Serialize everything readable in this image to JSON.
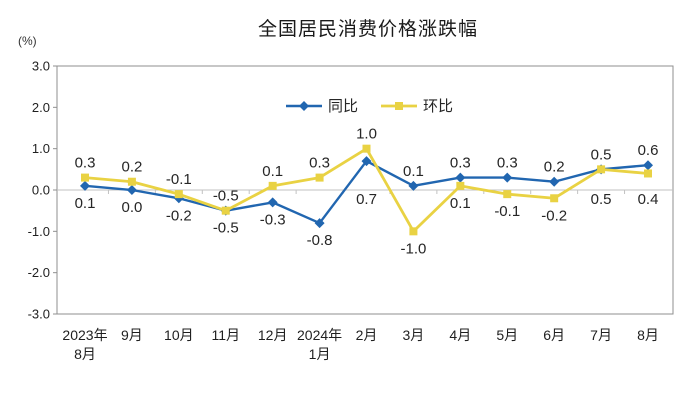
{
  "chart_data": {
    "type": "line",
    "title": "全国居民消费价格涨跌幅",
    "ylabel": "(%)",
    "xlabel": "",
    "categories": [
      "2023年8月",
      "9月",
      "10月",
      "11月",
      "12月",
      "2024年1月",
      "2月",
      "3月",
      "4月",
      "5月",
      "6月",
      "7月",
      "8月"
    ],
    "series": [
      {
        "name": "同比",
        "color": "#2166B0",
        "marker": "diamond",
        "values": [
          0.1,
          0.0,
          -0.2,
          -0.5,
          -0.3,
          -0.8,
          0.7,
          0.1,
          0.3,
          0.3,
          0.2,
          0.5,
          0.6
        ]
      },
      {
        "name": "环比",
        "color": "#E9D243",
        "marker": "square",
        "values": [
          0.3,
          0.2,
          -0.1,
          -0.5,
          0.1,
          0.3,
          1.0,
          -1.0,
          0.1,
          -0.1,
          -0.2,
          0.5,
          0.4
        ]
      }
    ],
    "ylim": [
      -3.0,
      3.0
    ],
    "ytick_step": 1.0,
    "ytick_labels": [
      "3.0",
      "2.0",
      "1.0",
      "0.0",
      "-1.0",
      "-2.0",
      "-3.0"
    ],
    "grid": false,
    "legend_position": "top-center",
    "data_labels": true
  },
  "colors": {
    "frame": "#8f8f8f",
    "zero_line": "#c2c2c2",
    "tick": "#8f8f8f",
    "label_text": "#262626",
    "axis_text": "#1f1f1f"
  }
}
